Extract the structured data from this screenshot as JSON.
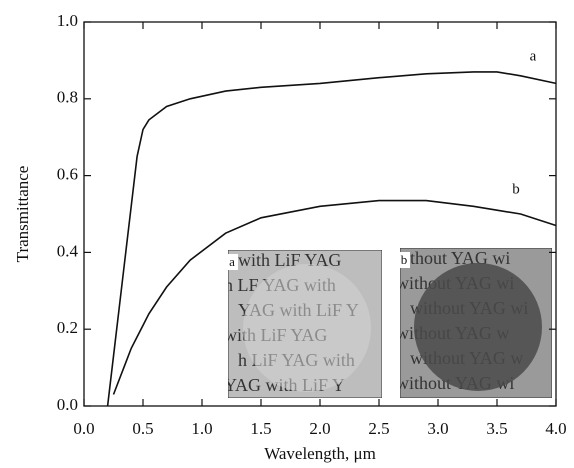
{
  "chart_data": {
    "type": "line",
    "xlabel": "Wavelength, μm",
    "ylabel": "Transmittance",
    "x": [
      0.2,
      0.25,
      0.3,
      0.35,
      0.4,
      0.45,
      0.5,
      0.55,
      0.7,
      0.9,
      1.2,
      1.5,
      2.0,
      2.5,
      2.9,
      3.3,
      3.5,
      3.7,
      4.0
    ],
    "series": [
      {
        "name": "a",
        "color": "#111111",
        "values": [
          0,
          0.13,
          0.26,
          0.39,
          0.52,
          0.65,
          0.72,
          0.745,
          0.78,
          0.8,
          0.82,
          0.83,
          0.84,
          0.855,
          0.865,
          0.87,
          0.87,
          0.86,
          0.84
        ]
      },
      {
        "name": "b",
        "color": "#111111",
        "values": [
          null,
          0.03,
          0.07,
          0.11,
          0.15,
          0.18,
          0.21,
          0.24,
          0.31,
          0.38,
          0.45,
          0.49,
          0.52,
          0.535,
          0.535,
          0.52,
          0.51,
          0.5,
          0.47
        ]
      }
    ],
    "xlim": [
      0,
      4
    ],
    "xticks": [
      {
        "value": 0,
        "label": "0.0"
      },
      0.5,
      {
        "value": 1,
        "label": "1.0"
      },
      1.5,
      {
        "value": 2,
        "label": "2.0"
      },
      2.5,
      {
        "value": 3,
        "label": "3.0"
      },
      3.5,
      {
        "value": 4,
        "label": "4.0"
      }
    ],
    "ylim": [
      0,
      1
    ],
    "yticks": [
      {
        "value": 0,
        "label": "0.0"
      },
      0.2,
      0.4,
      0.6,
      0.8,
      {
        "value": 1,
        "label": "1.0"
      }
    ],
    "insets": [
      {
        "label": "a",
        "lines": [
          "with LiF YAG",
          "h LF YAG with",
          "YAG with LiF Y",
          "with LiF YAG",
          "h LiF YAG with",
          "YAG with LiF Y"
        ]
      },
      {
        "label": "b",
        "lines": [
          "thout YAG wi",
          "without YAG wi",
          "without YAG wi",
          "without YAG w",
          "without YAG w",
          "without YAG wi"
        ]
      }
    ]
  }
}
